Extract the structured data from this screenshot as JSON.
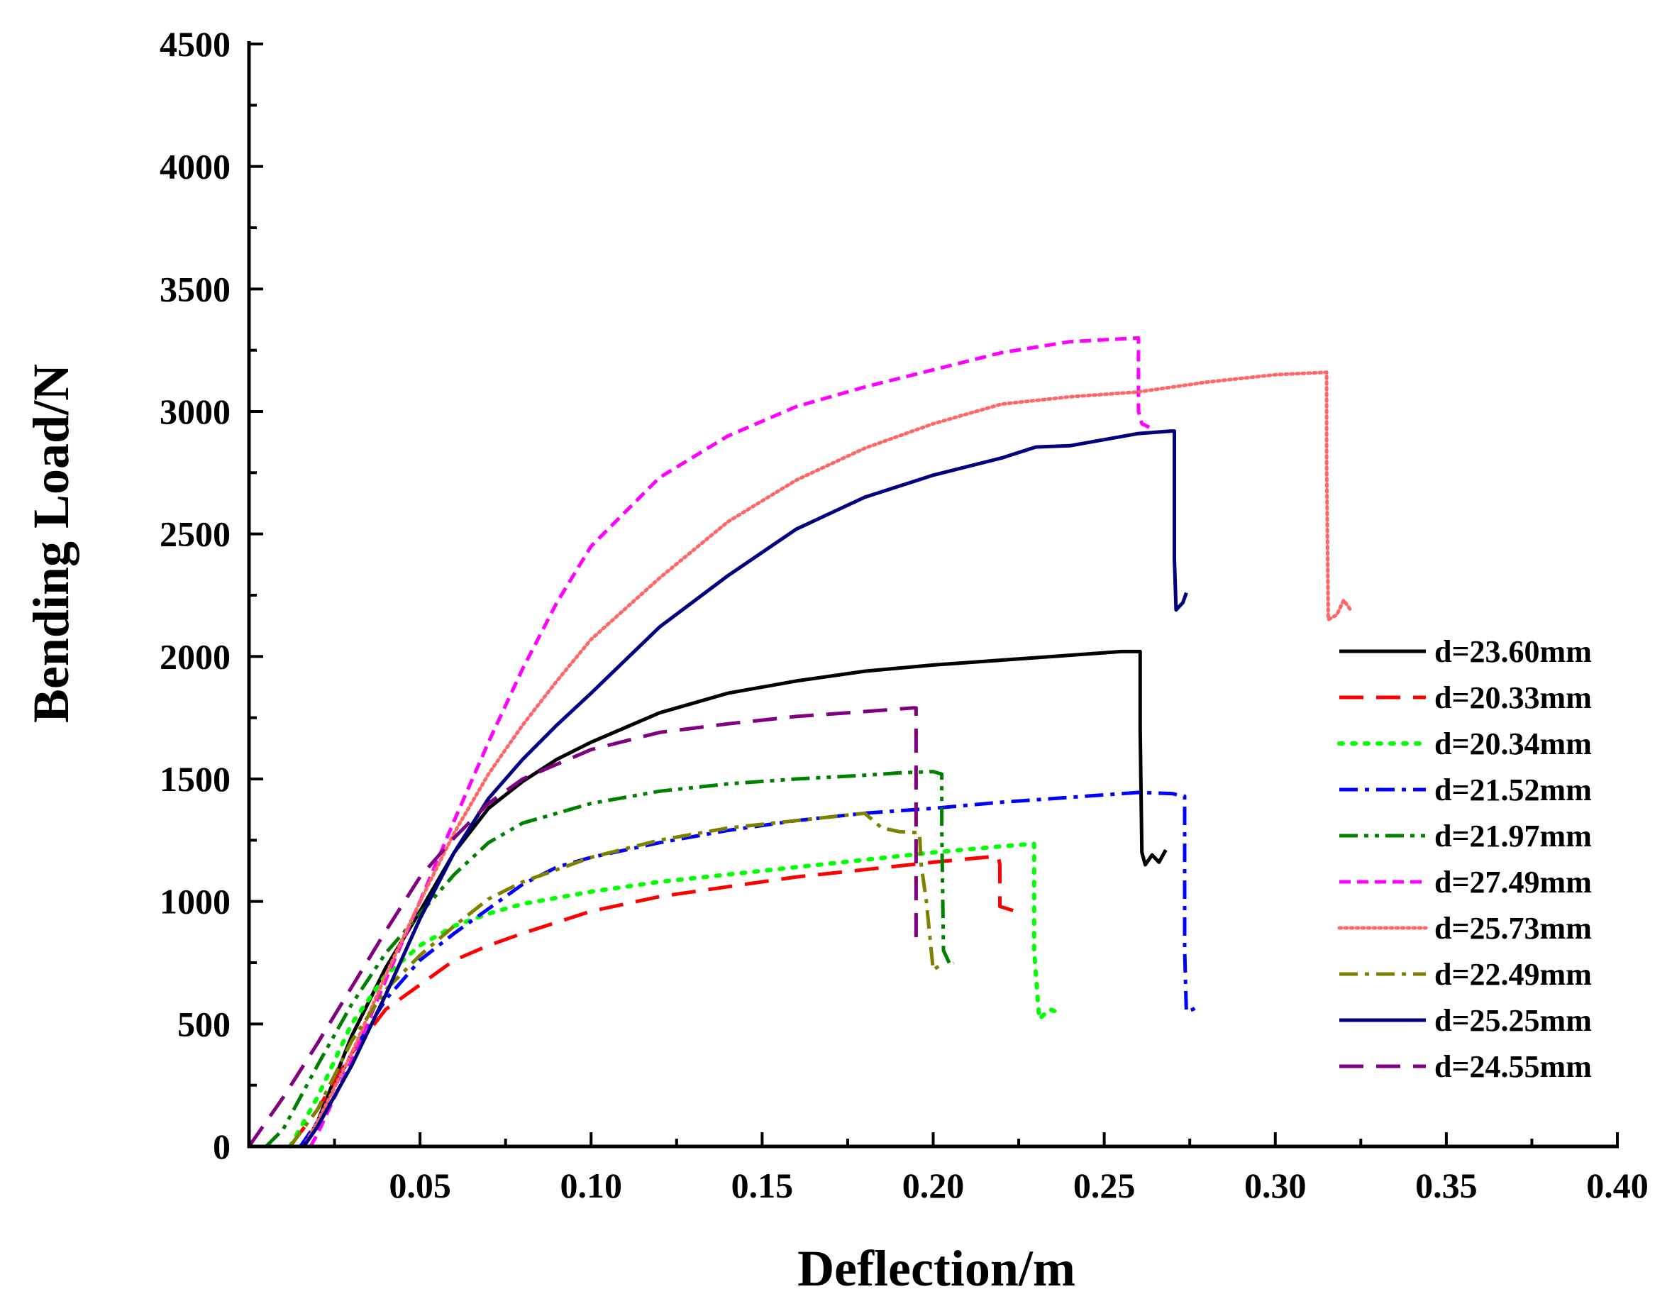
{
  "chart_data": {
    "type": "line",
    "title": "",
    "xlabel": "Deflection/m",
    "ylabel": "Bending Load/N",
    "xlim": [
      0,
      0.4
    ],
    "ylim": [
      0,
      4500
    ],
    "xticks": [
      0.05,
      0.1,
      0.15,
      0.2,
      0.25,
      0.3,
      0.35,
      0.4
    ],
    "xtick_labels": [
      "0.05",
      "0.10",
      "0.15",
      "0.20",
      "0.25",
      "0.30",
      "0.35",
      "0.40"
    ],
    "yticks": [
      0,
      500,
      1000,
      1500,
      2000,
      2500,
      3000,
      3500,
      4000,
      4500
    ],
    "ytick_labels": [
      "0",
      "500",
      "1000",
      "1500",
      "2000",
      "2500",
      "3000",
      "3500",
      "4000",
      "4500"
    ],
    "legend_position": "right",
    "grid": false,
    "series": [
      {
        "name": "d=23.60mm",
        "color": "#000000",
        "dash": "solid",
        "x": [
          0.016,
          0.02,
          0.03,
          0.04,
          0.05,
          0.06,
          0.07,
          0.08,
          0.09,
          0.1,
          0.12,
          0.14,
          0.16,
          0.18,
          0.2,
          0.22,
          0.24,
          0.255,
          0.2605,
          0.2605,
          0.261,
          0.262,
          0.264,
          0.266,
          0.268
        ],
        "y": [
          0,
          100,
          450,
          730,
          960,
          1200,
          1380,
          1490,
          1580,
          1650,
          1770,
          1850,
          1900,
          1940,
          1965,
          1985,
          2005,
          2020,
          2020,
          1700,
          1200,
          1150,
          1190,
          1160,
          1210
        ]
      },
      {
        "name": "d=20.33mm",
        "color": "#ff0000",
        "dash": "long-dash",
        "x": [
          0.012,
          0.02,
          0.03,
          0.04,
          0.05,
          0.06,
          0.07,
          0.08,
          0.1,
          0.12,
          0.14,
          0.16,
          0.18,
          0.2,
          0.215,
          0.219,
          0.2195,
          0.2195,
          0.224,
          0.226
        ],
        "y": [
          0,
          150,
          380,
          560,
          660,
          760,
          820,
          870,
          960,
          1020,
          1060,
          1100,
          1130,
          1160,
          1180,
          1185,
          1150,
          980,
          960,
          980
        ]
      },
      {
        "name": "d=20.34mm",
        "color": "#00ff00",
        "dash": "dotted",
        "x": [
          0.012,
          0.02,
          0.03,
          0.04,
          0.05,
          0.06,
          0.07,
          0.08,
          0.1,
          0.12,
          0.14,
          0.16,
          0.18,
          0.2,
          0.22,
          0.229,
          0.2295,
          0.2295,
          0.231,
          0.234,
          0.236
        ],
        "y": [
          0,
          200,
          500,
          700,
          820,
          900,
          950,
          990,
          1040,
          1080,
          1110,
          1140,
          1170,
          1200,
          1225,
          1235,
          1235,
          800,
          520,
          560,
          550
        ]
      },
      {
        "name": "d=21.52mm",
        "color": "#0000ff",
        "dash": "dash-dot",
        "x": [
          0.015,
          0.02,
          0.03,
          0.04,
          0.05,
          0.06,
          0.07,
          0.08,
          0.09,
          0.1,
          0.12,
          0.14,
          0.16,
          0.18,
          0.2,
          0.22,
          0.24,
          0.26,
          0.27,
          0.273,
          0.2735,
          0.2735,
          0.274,
          0.276,
          0.278
        ],
        "y": [
          0,
          100,
          380,
          600,
          760,
          870,
          970,
          1070,
          1140,
          1180,
          1240,
          1290,
          1330,
          1360,
          1380,
          1405,
          1425,
          1445,
          1440,
          1430,
          1430,
          800,
          550,
          560,
          580
        ]
      },
      {
        "name": "d=21.97mm",
        "color": "#008000",
        "dash": "dash-dot-dot",
        "x": [
          0.005,
          0.01,
          0.02,
          0.03,
          0.04,
          0.05,
          0.06,
          0.07,
          0.08,
          0.1,
          0.12,
          0.14,
          0.16,
          0.18,
          0.19,
          0.2,
          0.2025,
          0.2025,
          0.203,
          0.205,
          0.206
        ],
        "y": [
          0,
          70,
          330,
          580,
          790,
          950,
          1110,
          1240,
          1320,
          1400,
          1450,
          1480,
          1500,
          1515,
          1525,
          1530,
          1520,
          1300,
          800,
          740,
          750
        ]
      },
      {
        "name": "d=27.49mm",
        "color": "#ff00ff",
        "dash": "short-dash",
        "x": [
          0.018,
          0.02,
          0.03,
          0.04,
          0.05,
          0.06,
          0.07,
          0.08,
          0.09,
          0.1,
          0.12,
          0.14,
          0.16,
          0.18,
          0.2,
          0.22,
          0.24,
          0.2595,
          0.26,
          0.26,
          0.261,
          0.264
        ],
        "y": [
          0,
          50,
          350,
          680,
          1000,
          1330,
          1650,
          1950,
          2220,
          2450,
          2730,
          2900,
          3020,
          3100,
          3170,
          3240,
          3285,
          3300,
          3300,
          3000,
          2950,
          2930
        ]
      },
      {
        "name": "d=25.73mm",
        "color": "#ff6666",
        "dash": "dense-dot",
        "x": [
          0.016,
          0.02,
          0.03,
          0.04,
          0.05,
          0.06,
          0.07,
          0.08,
          0.09,
          0.1,
          0.12,
          0.14,
          0.16,
          0.18,
          0.2,
          0.22,
          0.24,
          0.26,
          0.28,
          0.3,
          0.315,
          0.315,
          0.3155,
          0.318,
          0.32,
          0.322
        ],
        "y": [
          0,
          100,
          380,
          700,
          1000,
          1280,
          1520,
          1720,
          1900,
          2070,
          2320,
          2550,
          2720,
          2850,
          2950,
          3030,
          3060,
          3080,
          3120,
          3150,
          3160,
          2800,
          2150,
          2170,
          2230,
          2190
        ]
      },
      {
        "name": "d=22.49mm",
        "color": "#808000",
        "dash": "dash-dot",
        "x": [
          0.012,
          0.02,
          0.03,
          0.04,
          0.05,
          0.06,
          0.07,
          0.08,
          0.1,
          0.12,
          0.14,
          0.16,
          0.18,
          0.185,
          0.19,
          0.196,
          0.1965,
          0.198,
          0.2,
          0.202
        ],
        "y": [
          0,
          150,
          430,
          640,
          780,
          900,
          1010,
          1080,
          1180,
          1250,
          1300,
          1330,
          1360,
          1300,
          1285,
          1280,
          1150,
          1000,
          720,
          740
        ]
      },
      {
        "name": "d=25.25mm",
        "color": "#000080",
        "dash": "solid",
        "x": [
          0.016,
          0.02,
          0.03,
          0.04,
          0.05,
          0.06,
          0.07,
          0.08,
          0.09,
          0.1,
          0.12,
          0.14,
          0.16,
          0.18,
          0.2,
          0.22,
          0.23,
          0.24,
          0.26,
          0.2695,
          0.2705,
          0.2705,
          0.271,
          0.273,
          0.274
        ],
        "y": [
          0,
          80,
          330,
          620,
          930,
          1200,
          1420,
          1580,
          1720,
          1850,
          2120,
          2330,
          2520,
          2650,
          2740,
          2810,
          2855,
          2860,
          2910,
          2920,
          2920,
          2400,
          2190,
          2220,
          2260
        ]
      },
      {
        "name": "d=24.55mm",
        "color": "#800080",
        "dash": "long-dash",
        "x": [
          0.0,
          0.01,
          0.02,
          0.03,
          0.04,
          0.05,
          0.06,
          0.07,
          0.08,
          0.1,
          0.12,
          0.14,
          0.16,
          0.18,
          0.194,
          0.195,
          0.195,
          0.195
        ],
        "y": [
          0,
          200,
          420,
          650,
          880,
          1100,
          1260,
          1400,
          1500,
          1620,
          1690,
          1725,
          1755,
          1775,
          1790,
          1790,
          1300,
          820
        ]
      }
    ]
  }
}
